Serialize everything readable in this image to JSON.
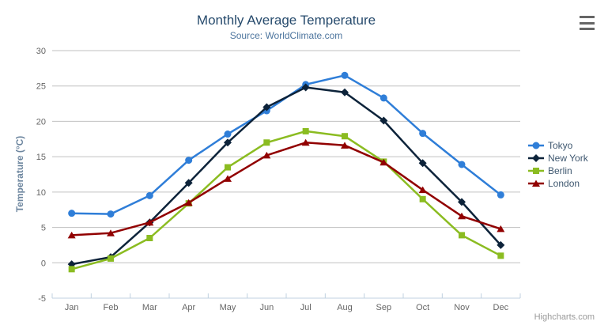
{
  "chart": {
    "title": "Monthly Average Temperature",
    "subtitle": "Source: WorldClimate.com",
    "credit": "Highcharts.com",
    "menu_icon": "hamburger-icon"
  },
  "chart_data": {
    "type": "line",
    "title": "Monthly Average Temperature",
    "subtitle": "Source: WorldClimate.com",
    "categories": [
      "Jan",
      "Feb",
      "Mar",
      "Apr",
      "May",
      "Jun",
      "Jul",
      "Aug",
      "Sep",
      "Oct",
      "Nov",
      "Dec"
    ],
    "xlabel": "",
    "ylabel": "Temperature (°C)",
    "ylim": [
      -5,
      30
    ],
    "ytick_interval": 5,
    "yticks": [
      -5,
      0,
      5,
      10,
      15,
      20,
      25,
      30
    ],
    "grid": true,
    "legend_position": "right",
    "series": [
      {
        "name": "Tokyo",
        "color": "#2f7ed8",
        "marker": "circle",
        "values": [
          7.0,
          6.9,
          9.5,
          14.5,
          18.2,
          21.5,
          25.2,
          26.5,
          23.3,
          18.3,
          13.9,
          9.6
        ]
      },
      {
        "name": "New York",
        "color": "#0d233a",
        "marker": "diamond",
        "values": [
          -0.2,
          0.8,
          5.7,
          11.3,
          17.0,
          22.0,
          24.8,
          24.1,
          20.1,
          14.1,
          8.6,
          2.5
        ]
      },
      {
        "name": "Berlin",
        "color": "#8bbc21",
        "marker": "square",
        "values": [
          -0.9,
          0.6,
          3.5,
          8.4,
          13.5,
          17.0,
          18.6,
          17.9,
          14.3,
          9.0,
          3.9,
          1.0
        ]
      },
      {
        "name": "London",
        "color": "#910000",
        "marker": "triangle",
        "values": [
          3.9,
          4.2,
          5.7,
          8.5,
          11.9,
          15.2,
          17.0,
          16.6,
          14.2,
          10.3,
          6.6,
          4.8
        ]
      }
    ]
  },
  "theme": {
    "title_color": "#274b6d",
    "subtitle_color": "#4d759e",
    "axis_title_color": "#6D869F",
    "axis_label_color": "#666666",
    "grid_color": "#C0C0C0",
    "axis_line_color": "#C0D0E0",
    "legend_text_color": "#3E576F",
    "credit_color": "#999999",
    "menu_color": "#666666",
    "background": "#ffffff"
  }
}
